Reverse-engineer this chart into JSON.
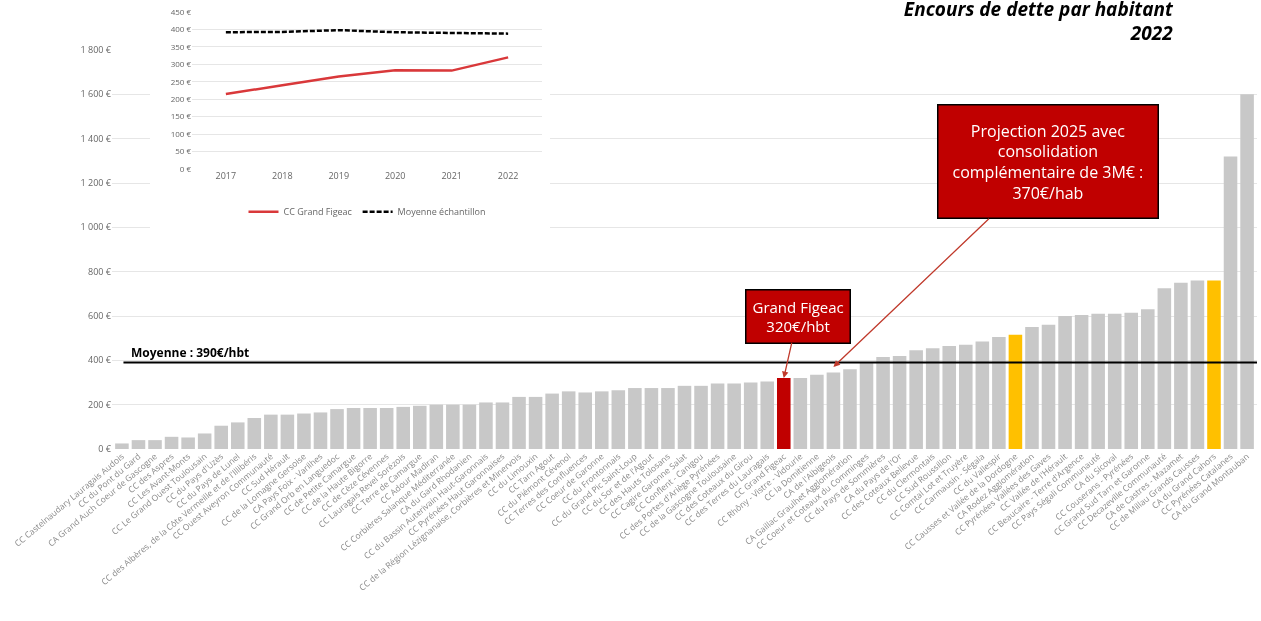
{
  "chart_data": [
    {
      "type": "bar",
      "title": "Encours de dette par habitant\n2022",
      "categories": [
        "CC Castelnaudary Lauragais Audois",
        "CC du Pont du Gard",
        "CA Grand Auch Coeur de Gascogne",
        "CC des Aspres",
        "CC Les Avant-Monts",
        "CC Le Grand Ouest Toulousain",
        "CC du Pays d'Uzès",
        "CC du Pays de Lunel",
        "CC des Albères, de la Côte Vermeille et de l'Illibéris",
        "CC Ouest Aveyron Communauté",
        "CC Sud Hérault",
        "CC de la Lomagne Gersoise",
        "CA Pays Foix - Varilhes",
        "CC Grand Orb en Languedoc",
        "CC de Petite Camargue",
        "CC de la Haute Bigorre",
        "CC de Cèze Cévennes",
        "CC Lauragais Revel Sorézois",
        "CC Terre de Camargue",
        "CC Adour Madiran",
        "CC Corbières Salanque Méditerranée",
        "CA du Gard Rhodanien",
        "CC du Bassin Auterivain Haut-Garonnais",
        "CC Pyrénées Haut Garonnaises",
        "CC de la Région Lézignanaise, Corbières et Minervois",
        "CC du Limouxin",
        "CC Tarn Agout",
        "CC du Piémont Cévenol",
        "CC Terres des Confluences",
        "CC Coeur de Garonne",
        "CC du Frontonnais",
        "CC du Grand Pic Saint-Loup",
        "CC du Sor et de l'Agout",
        "CC des Hauts Tolosans",
        "CC Cagire Garonne Salat",
        "CC Conflent - Canigou",
        "CC des Portes d'Ariège Pyrénées",
        "CC de la Gascogne Toulousaine",
        "CC des Coteaux du Girou",
        "CC des Terres du Lauragais",
        "CC Grand Figeac",
        "CC Rhôny - Vistre - Vidourle",
        "CC la Domitienne",
        "CA de l'Albigeois",
        "CA Gaillac Graulhet Agglomération",
        "CC Coeur et Coteaux du Comminges",
        "CC du Pays de Sommières",
        "CA du Pays de l'Or",
        "CC des Coteaux Bellevue",
        "CC du Clermontais",
        "CC Sud Roussillon",
        "CC Comtal Lot et Truyère",
        "CC Carmausin - Ségala",
        "CC du Vallespir",
        "CC Causses et Vallée de la Dordogne",
        "CA Rodez Agglomération",
        "CC Pyrénées Vallées des Gaves",
        "CC Vallée de l'Hérault",
        "CC Beaucaire - Terre d'Argence",
        "CC Pays Ségali Communauté",
        "CA du Sicoval",
        "CC Couserans - Pyrénées",
        "CC Grand Sud Tarn et Garonne",
        "CC Decazeville Communauté",
        "CA de Castres - Mazamet",
        "CC de Millau Grands Causses",
        "CA du Grand Cahors",
        "CC Pyrénées Catalanes",
        "CA du Grand Montauban"
      ],
      "values": [
        25,
        40,
        40,
        55,
        52,
        70,
        105,
        120,
        140,
        155,
        155,
        160,
        165,
        180,
        185,
        185,
        185,
        190,
        195,
        200,
        200,
        200,
        210,
        210,
        235,
        235,
        250,
        260,
        255,
        260,
        265,
        275,
        275,
        275,
        285,
        285,
        295,
        295,
        300,
        305,
        320,
        320,
        335,
        345,
        360,
        390,
        415,
        420,
        445,
        455,
        465,
        470,
        485,
        505,
        515,
        550,
        560,
        600,
        605,
        610,
        610,
        615,
        630,
        725,
        750,
        760,
        760,
        1320,
        1600
      ],
      "colors": [
        "#c8c8c8",
        "#c8c8c8",
        "#c8c8c8",
        "#c8c8c8",
        "#c8c8c8",
        "#c8c8c8",
        "#c8c8c8",
        "#c8c8c8",
        "#c8c8c8",
        "#c8c8c8",
        "#c8c8c8",
        "#c8c8c8",
        "#c8c8c8",
        "#c8c8c8",
        "#c8c8c8",
        "#c8c8c8",
        "#c8c8c8",
        "#c8c8c8",
        "#c8c8c8",
        "#c8c8c8",
        "#c8c8c8",
        "#c8c8c8",
        "#c8c8c8",
        "#c8c8c8",
        "#c8c8c8",
        "#c8c8c8",
        "#c8c8c8",
        "#c8c8c8",
        "#c8c8c8",
        "#c8c8c8",
        "#c8c8c8",
        "#c8c8c8",
        "#c8c8c8",
        "#c8c8c8",
        "#c8c8c8",
        "#c8c8c8",
        "#c8c8c8",
        "#c8c8c8",
        "#c8c8c8",
        "#c8c8c8",
        "#c00000",
        "#c8c8c8",
        "#c8c8c8",
        "#c8c8c8",
        "#c8c8c8",
        "#c8c8c8",
        "#c8c8c8",
        "#c8c8c8",
        "#c8c8c8",
        "#c8c8c8",
        "#c8c8c8",
        "#c8c8c8",
        "#c8c8c8",
        "#c8c8c8",
        "#ffc000",
        "#c8c8c8",
        "#c8c8c8",
        "#c8c8c8",
        "#c8c8c8",
        "#c8c8c8",
        "#c8c8c8",
        "#c8c8c8",
        "#c8c8c8",
        "#c8c8c8",
        "#c8c8c8",
        "#c8c8c8",
        "#ffc000",
        "#c8c8c8",
        "#c8c8c8"
      ],
      "ylim": [
        0,
        1800
      ],
      "yticks": [
        {
          "value": 0,
          "label": "0 €"
        },
        {
          "value": 200,
          "label": "200 €"
        },
        {
          "value": 400,
          "label": "400 €"
        },
        {
          "value": 600,
          "label": "600 €"
        },
        {
          "value": 800,
          "label": "800 €"
        },
        {
          "value": 1000,
          "label": "1 000 €"
        },
        {
          "value": 1200,
          "label": "1 200 €"
        },
        {
          "value": 1400,
          "label": "1 400 €"
        },
        {
          "value": 1600,
          "label": "1 600 €"
        },
        {
          "value": 1800,
          "label": "1 800 €"
        }
      ],
      "grid": "y",
      "legend": false,
      "ref_lines": [
        {
          "axis": "y",
          "value": 390,
          "label": "Moyenne : 390€/hbt",
          "color": "#000000"
        }
      ],
      "annotations": [
        {
          "text": "Grand Figeac\n320€/hbt",
          "x": "CC Grand Figeac",
          "y": 320
        },
        {
          "text": "Projection 2025 avec\nconsolidation\ncomplémentaire de 3M€ :\n370€/hab",
          "x": "CA de l'Albigeois",
          "y": 370
        }
      ]
    },
    {
      "type": "line",
      "categories": [
        "2017",
        "2018",
        "2019",
        "2020",
        "2021",
        "2022"
      ],
      "series": [
        {
          "name": "CC Grand Figeac",
          "color": "#d9383a",
          "values": [
            215,
            240,
            265,
            283,
            282,
            320
          ],
          "line_style": "solid"
        },
        {
          "name": "Moyenne échantillon",
          "color": "#000000",
          "values": [
            392,
            393,
            398,
            392,
            390,
            388
          ],
          "line_style": "dashed"
        }
      ],
      "ylim": [
        0,
        450
      ],
      "yticks": [
        {
          "value": 0,
          "label": "0 €"
        },
        {
          "value": 50,
          "label": "50 €"
        },
        {
          "value": 100,
          "label": "100 €"
        },
        {
          "value": 150,
          "label": "150 €"
        },
        {
          "value": 200,
          "label": "200 €"
        },
        {
          "value": 250,
          "label": "250 €"
        },
        {
          "value": 300,
          "label": "300 €"
        },
        {
          "value": 350,
          "label": "350 €"
        },
        {
          "value": 400,
          "label": "400 €"
        },
        {
          "value": 450,
          "label": "450 €"
        }
      ],
      "grid": "y",
      "legend": "bottom"
    }
  ]
}
